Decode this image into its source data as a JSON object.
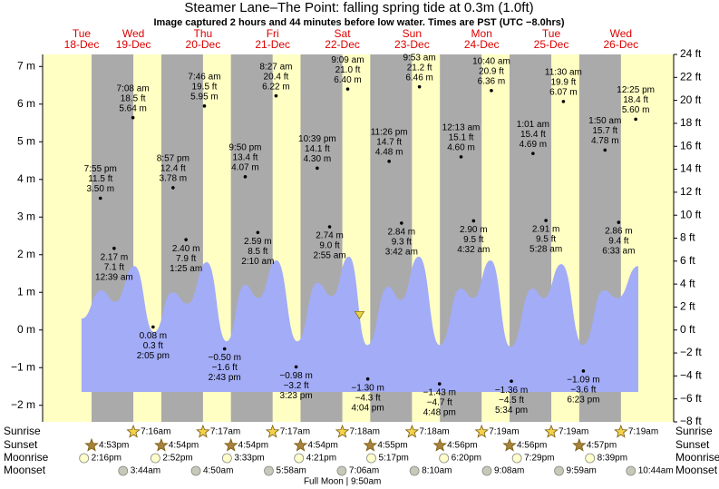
{
  "chart_data": {
    "type": "tide",
    "title": "Steamer Lane–The Point: falling  spring tide at 0.3m (1.0ft)",
    "subtitle": "Image captured 2 hours and 44 minutes before low water. Times are PST (UTC −8.0hrs)",
    "xlim": [
      0,
      217.5
    ],
    "ylim": [
      -2.44,
      7.32
    ],
    "yticks": [
      {
        "value": -2,
        "label": "−2 m"
      },
      {
        "value": -1,
        "label": "−1 m"
      },
      {
        "value": 0,
        "label": "0 m"
      },
      {
        "value": 1,
        "label": "1 m"
      },
      {
        "value": 2,
        "label": "2 m"
      },
      {
        "value": 3,
        "label": "3 m"
      },
      {
        "value": 4,
        "label": "4 m"
      },
      {
        "value": 5,
        "label": "5 m"
      },
      {
        "value": 6,
        "label": "6 m"
      },
      {
        "value": 7,
        "label": "7 m"
      }
    ],
    "y2lim": [
      -8,
      24
    ],
    "y2ticks": [
      {
        "value": -8,
        "label": "−8 ft"
      },
      {
        "value": -6,
        "label": "−6 ft"
      },
      {
        "value": -4,
        "label": "−4 ft"
      },
      {
        "value": -2,
        "label": "−2 ft"
      },
      {
        "value": 0,
        "label": "0 ft"
      },
      {
        "value": 2,
        "label": "2 ft"
      },
      {
        "value": 4,
        "label": "4 ft"
      },
      {
        "value": 6,
        "label": "6 ft"
      },
      {
        "value": 8,
        "label": "8 ft"
      },
      {
        "value": 10,
        "label": "10 ft"
      },
      {
        "value": 12,
        "label": "12 ft"
      },
      {
        "value": 14,
        "label": "14 ft"
      },
      {
        "value": 16,
        "label": "16 ft"
      },
      {
        "value": 18,
        "label": "18 ft"
      },
      {
        "value": 20,
        "label": "20 ft"
      },
      {
        "value": 22,
        "label": "22 ft"
      },
      {
        "value": 24,
        "label": "24 ft"
      }
    ],
    "days": [
      {
        "dow": "Tue",
        "date": "18-Dec"
      },
      {
        "dow": "Wed",
        "date": "19-Dec"
      },
      {
        "dow": "Thu",
        "date": "20-Dec"
      },
      {
        "dow": "Fri",
        "date": "21-Dec"
      },
      {
        "dow": "Sat",
        "date": "22-Dec"
      },
      {
        "dow": "Sun",
        "date": "23-Dec"
      },
      {
        "dow": "Mon",
        "date": "24-Dec"
      },
      {
        "dow": "Tue",
        "date": "25-Dec"
      },
      {
        "dow": "Wed",
        "date": "26-Dec"
      }
    ],
    "tides": {
      "x": [
        19.92,
        24.65,
        31.13,
        38.08,
        44.95,
        49.42,
        55.77,
        62.72,
        69.83,
        74.17,
        80.45,
        87.38,
        94.65,
        98.92,
        105.15,
        112.07,
        119.43,
        123.7,
        129.88,
        136.8,
        144.22,
        148.53,
        154.67,
        161.57,
        169.02,
        173.47,
        179.5,
        186.38,
        193.83,
        198.55,
        204.42
      ],
      "values": [
        3.5,
        2.17,
        5.64,
        0.08,
        3.78,
        2.4,
        5.95,
        -0.5,
        4.07,
        2.59,
        6.22,
        -0.98,
        4.3,
        2.74,
        6.4,
        -1.3,
        4.48,
        2.84,
        6.46,
        -1.43,
        4.6,
        2.9,
        6.36,
        -1.36,
        4.69,
        2.91,
        6.07,
        -1.09,
        4.78,
        2.86,
        5.6
      ],
      "value_labels": [
        "3.50 m",
        "2.17 m",
        "5.64 m",
        "0.08 m",
        "3.78 m",
        "2.40 m",
        "5.95 m",
        "−0.50 m",
        "4.07 m",
        "2.59 m",
        "6.22 m",
        "−0.98 m",
        "4.30 m",
        "2.74 m",
        "6.40 m",
        "−1.30 m",
        "4.48 m",
        "2.84 m",
        "6.46 m",
        "−1.43 m",
        "4.60 m",
        "2.90 m",
        "6.36 m",
        "−1.36 m",
        "4.69 m",
        "2.91 m",
        "6.07 m",
        "−1.09 m",
        "4.78 m",
        "2.86 m",
        "5.60 m"
      ],
      "ft_labels": [
        "11.5 ft",
        "7.1 ft",
        "18.5 ft",
        "0.3 ft",
        "12.4 ft",
        "7.9 ft",
        "19.5 ft",
        "−1.6 ft",
        "13.4 ft",
        "8.5 ft",
        "20.4 ft",
        "−3.2 ft",
        "14.1 ft",
        "9.0 ft",
        "21.0 ft",
        "−4.3 ft",
        "14.7 ft",
        "9.3 ft",
        "21.2 ft",
        "−4.7 ft",
        "15.1 ft",
        "9.5 ft",
        "20.9 ft",
        "−4.5 ft",
        "15.4 ft",
        "9.5 ft",
        "19.9 ft",
        "−3.6 ft",
        "15.7 ft",
        "9.4 ft",
        "18.4 ft"
      ],
      "times": [
        "7:55 pm",
        "12:39 am",
        "7:08 am",
        "2:05 pm",
        "8:57 pm",
        "1:25 am",
        "7:46 am",
        "2:43 pm",
        "9:50 pm",
        "2:10 am",
        "8:27 am",
        "3:23 pm",
        "10:39 pm",
        "2:55 am",
        "9:09 am",
        "4:04 pm",
        "11:26 pm",
        "3:42 am",
        "9:53 am",
        "4:48 pm",
        "12:13 am",
        "4:32 am",
        "10:40 am",
        "5:34 pm",
        "1:01 am",
        "5:28 am",
        "11:30 am",
        "6:23 pm",
        "1:50 am",
        "6:33 am",
        "12:25 pm"
      ]
    },
    "tide_curve": {
      "x": [
        13.4,
        20.3,
        25.0,
        31.6,
        38.4,
        44.7,
        50.0,
        56.6,
        63.4,
        69.7,
        74.4,
        80.6,
        87.8,
        94.7,
        99.7,
        105.6,
        111.9,
        119.1,
        123.4,
        129.7,
        136.9,
        144.1,
        148.4,
        154.4,
        161.3,
        168.8,
        172.8,
        178.8,
        186.3,
        193.4,
        198.1,
        205.3
      ],
      "values": [
        0.3,
        1.05,
        0.75,
        1.7,
        -0.05,
        1.0,
        0.7,
        1.8,
        -0.3,
        1.2,
        0.85,
        1.85,
        -0.3,
        1.25,
        0.9,
        1.95,
        -0.4,
        1.15,
        0.8,
        1.95,
        -0.4,
        1.1,
        0.85,
        1.85,
        -0.45,
        1.1,
        0.85,
        1.75,
        -0.4,
        1.05,
        0.85,
        1.7
      ],
      "color": "#a3acf7"
    },
    "marker": {
      "x": 109.2,
      "value": 0.3,
      "color": "#e8d44a"
    },
    "colors": {
      "day": "#ffffc4",
      "night": "#aaaaaa",
      "day_label": "#dd0000"
    },
    "sunrise": {
      "label": "Sunrise",
      "times": [
        "7:16am",
        "7:17am",
        "7:17am",
        "7:18am",
        "7:18am",
        "7:19am",
        "7:19am",
        "7:19am"
      ],
      "x": [
        31.27,
        55.28,
        79.28,
        103.3,
        127.3,
        151.32,
        175.32,
        199.32
      ]
    },
    "sunset": {
      "label": "Sunset",
      "times": [
        "4:53pm",
        "4:54pm",
        "4:54pm",
        "4:54pm",
        "4:55pm",
        "4:56pm",
        "4:56pm",
        "4:57pm"
      ],
      "x": [
        16.88,
        40.9,
        64.9,
        88.9,
        112.92,
        136.93,
        160.93,
        184.95
      ]
    },
    "moonrise": {
      "label": "Moonrise",
      "times": [
        "2:16pm",
        "2:52pm",
        "3:33pm",
        "4:21pm",
        "5:17pm",
        "6:20pm",
        "7:29pm",
        "8:39pm"
      ],
      "x": [
        14.27,
        38.87,
        63.55,
        88.35,
        113.28,
        138.33,
        163.48,
        188.65
      ]
    },
    "moonset": {
      "label": "Moonset",
      "times": [
        "3:44am",
        "4:50am",
        "5:58am",
        "7:06am",
        "8:10am",
        "9:08am",
        "9:59am",
        "10:44am"
      ],
      "x": [
        27.73,
        52.83,
        77.97,
        103.1,
        128.17,
        153.13,
        177.98,
        202.73
      ]
    },
    "moon_phase": {
      "text": "Full Moon | 9:50am",
      "x": 105.83
    }
  }
}
